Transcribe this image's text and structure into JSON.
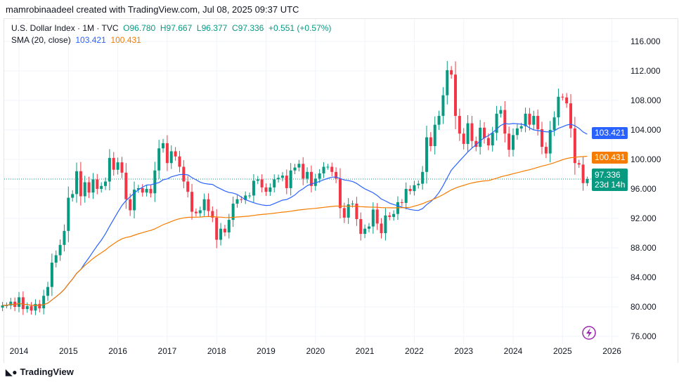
{
  "header": {
    "credit": "mamrobinaadeel created with TradingView.com, Jul 08, 2025 09:37 UTC"
  },
  "legend": {
    "symbol": "U.S. Dollar Index · 1M · TVC",
    "o": "O96.780",
    "h": "H97.667",
    "l": "L96.377",
    "c": "C97.336",
    "chg": "+0.551 (+0.57%)",
    "sma_label": "SMA (20, close)",
    "sma_blue": "103.421",
    "sma_orange": "100.431"
  },
  "labels": {
    "sma_blue": "103.421",
    "sma_orange": "100.431",
    "last_price": "97.336",
    "countdown": "23d 14h"
  },
  "colors": {
    "up": "#089981",
    "down": "#f23645",
    "sma_blue": "#2962ff",
    "sma_orange": "#f57c00"
  },
  "footer": {
    "brand": "TradingView"
  },
  "chart_data": {
    "type": "candlestick",
    "interval": "1M",
    "start": "2013-09",
    "closes": [
      80.2,
      80.2,
      80.7,
      80.0,
      81.3,
      79.7,
      80.1,
      79.5,
      80.4,
      79.8,
      81.5,
      82.7,
      86.0,
      87.0,
      88.4,
      90.3,
      94.8,
      95.3,
      98.4,
      95.0,
      96.9,
      95.5,
      97.3,
      96.0,
      96.4,
      97.0,
      100.2,
      98.6,
      99.6,
      98.2,
      94.6,
      93.1,
      95.9,
      96.1,
      95.5,
      96.0,
      95.4,
      98.5,
      101.5,
      102.2,
      99.5,
      101.1,
      100.4,
      99.0,
      97.0,
      95.6,
      92.9,
      92.7,
      93.1,
      94.6,
      93.0,
      92.1,
      89.1,
      90.6,
      90.1,
      91.8,
      94.0,
      94.6,
      94.5,
      95.1,
      95.1,
      97.1,
      97.3,
      96.2,
      95.6,
      96.2,
      97.3,
      97.5,
      97.8,
      96.1,
      98.5,
      98.9,
      99.4,
      97.4,
      98.3,
      96.4,
      97.4,
      98.1,
      99.0,
      99.0,
      98.3,
      97.4,
      93.4,
      92.1,
      93.9,
      94.0,
      91.9,
      89.9,
      90.6,
      90.9,
      93.2,
      91.3,
      90.0,
      92.4,
      92.2,
      92.6,
      94.2,
      94.1,
      96.0,
      95.7,
      96.5,
      96.7,
      98.3,
      103.0,
      101.8,
      104.7,
      105.9,
      108.7,
      112.1,
      111.5,
      105.9,
      103.5,
      102.1,
      104.9,
      102.5,
      101.7,
      104.3,
      102.9,
      101.9,
      103.6,
      106.2,
      106.7,
      103.5,
      101.3,
      103.3,
      104.2,
      104.5,
      106.2,
      104.7,
      105.9,
      104.1,
      101.7,
      100.8,
      104.0,
      105.7,
      108.5,
      108.4,
      107.6,
      104.2,
      99.5,
      99.3,
      96.78,
      97.336
    ],
    "last_candle": {
      "open": 96.78,
      "high": 97.667,
      "low": 96.377,
      "close": 97.336
    },
    "sma_last": [
      103.421,
      100.431
    ],
    "y_ticks": [
      "116.000",
      "112.000",
      "108.000",
      "104.000",
      "100.000",
      "96.000",
      "92.000",
      "88.000",
      "84.000",
      "80.000",
      "76.000"
    ],
    "x_ticks": [
      "2014",
      "2015",
      "2016",
      "2017",
      "2018",
      "2019",
      "2020",
      "2021",
      "2022",
      "2023",
      "2024",
      "2025",
      "2026"
    ],
    "ylim": [
      76,
      116
    ],
    "grid": true
  }
}
